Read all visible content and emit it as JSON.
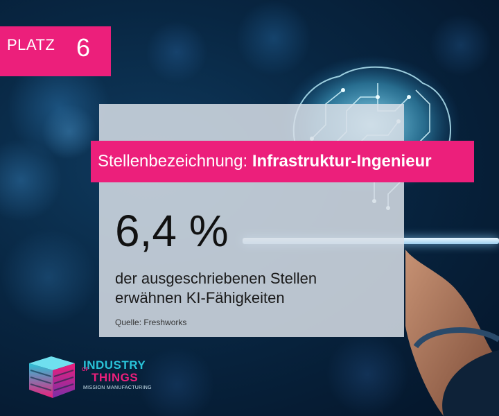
{
  "rank": {
    "label": "PLATZ",
    "number": "6"
  },
  "job": {
    "prefix": "Stellenbezeichnung:",
    "title": "Infrastruktur-Ingenieur"
  },
  "stat": {
    "value": "6,4 %"
  },
  "description": {
    "line1": "der ausgeschriebenen Stellen",
    "line2": "erwähnen KI-Fähigkeiten"
  },
  "source": "Quelle: Freshworks",
  "logo": {
    "line1": "INDUSTRY",
    "of": "OF",
    "line2": "THINGS",
    "tagline": "MISSION MANUFACTURING"
  },
  "colors": {
    "accent": "#ec1f7b",
    "background": "#082642",
    "glow": "#5fd3ff",
    "logo_cyan": "#29c3d8"
  },
  "icons": {
    "brain": "circuit-brain-icon",
    "hand": "hand-icon",
    "logo": "cube-logo-icon"
  }
}
